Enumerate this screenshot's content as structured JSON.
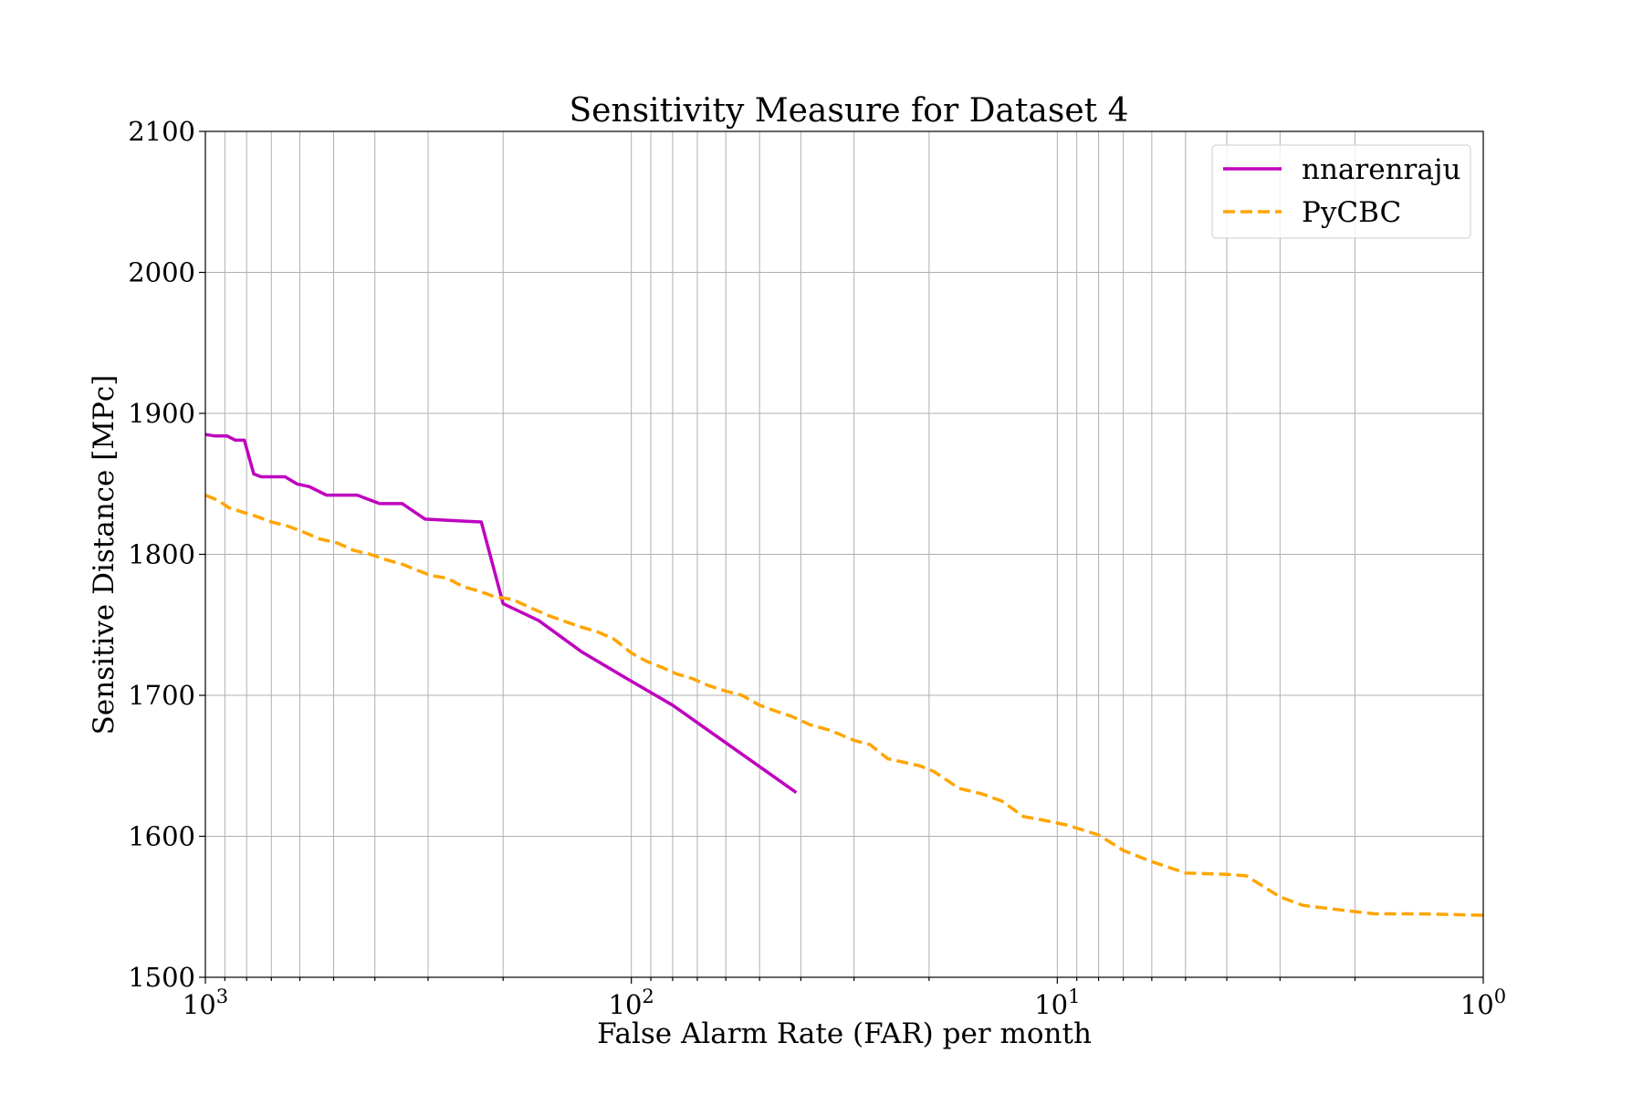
{
  "chart_data": {
    "type": "line",
    "title": "Sensitivity Measure for Dataset 4",
    "xlabel": "False Alarm Rate (FAR) per month",
    "ylabel": "Sensitive Distance [MPc]",
    "x_scale": "log",
    "x_reversed": true,
    "xlim": [
      1000,
      1
    ],
    "ylim": [
      1500,
      2100
    ],
    "grid": true,
    "legend_position": "top-right",
    "x_ticks": [
      {
        "value": 1000,
        "base": "10",
        "exp": "3"
      },
      {
        "value": 100,
        "base": "10",
        "exp": "2"
      },
      {
        "value": 10,
        "base": "10",
        "exp": "1"
      },
      {
        "value": 1,
        "base": "10",
        "exp": "0"
      }
    ],
    "y_ticks": [
      {
        "value": 1500,
        "label": "1500"
      },
      {
        "value": 1600,
        "label": "1600"
      },
      {
        "value": 1700,
        "label": "1700"
      },
      {
        "value": 1800,
        "label": "1800"
      },
      {
        "value": 1900,
        "label": "1900"
      },
      {
        "value": 2000,
        "label": "2000"
      },
      {
        "value": 2100,
        "label": "2100"
      }
    ],
    "series": [
      {
        "name": "nnarenraju",
        "color": "#bf00bf",
        "style": "solid",
        "points": [
          [
            1000,
            1885
          ],
          [
            950,
            1884
          ],
          [
            890,
            1884
          ],
          [
            850,
            1881
          ],
          [
            810,
            1881
          ],
          [
            770,
            1857
          ],
          [
            740,
            1855
          ],
          [
            650,
            1855
          ],
          [
            610,
            1850
          ],
          [
            570,
            1848
          ],
          [
            520,
            1842
          ],
          [
            440,
            1842
          ],
          [
            390,
            1836
          ],
          [
            345,
            1836
          ],
          [
            305,
            1825
          ],
          [
            265,
            1824
          ],
          [
            225,
            1823
          ],
          [
            200,
            1765
          ],
          [
            165,
            1753
          ],
          [
            131,
            1731
          ],
          [
            104,
            1713
          ],
          [
            80,
            1693
          ],
          [
            41,
            1631
          ]
        ]
      },
      {
        "name": "PyCBC",
        "color": "#ffa500",
        "style": "dashed",
        "points": [
          [
            1000,
            1842
          ],
          [
            930,
            1838
          ],
          [
            880,
            1833
          ],
          [
            820,
            1830
          ],
          [
            760,
            1827
          ],
          [
            700,
            1823
          ],
          [
            640,
            1820
          ],
          [
            590,
            1816
          ],
          [
            540,
            1811
          ],
          [
            490,
            1808
          ],
          [
            450,
            1803
          ],
          [
            410,
            1800
          ],
          [
            375,
            1796
          ],
          [
            345,
            1793
          ],
          [
            320,
            1789
          ],
          [
            295,
            1785
          ],
          [
            270,
            1783
          ],
          [
            248,
            1777
          ],
          [
            228,
            1774
          ],
          [
            210,
            1770
          ],
          [
            190,
            1768
          ],
          [
            175,
            1763
          ],
          [
            158,
            1757
          ],
          [
            145,
            1753
          ],
          [
            133,
            1749
          ],
          [
            120,
            1745
          ],
          [
            110,
            1740
          ],
          [
            100,
            1730
          ],
          [
            92,
            1724
          ],
          [
            85,
            1720
          ],
          [
            78,
            1715
          ],
          [
            72,
            1712
          ],
          [
            66,
            1707
          ],
          [
            60,
            1703
          ],
          [
            55,
            1700
          ],
          [
            50,
            1693
          ],
          [
            46,
            1689
          ],
          [
            42,
            1685
          ],
          [
            38,
            1679
          ],
          [
            34,
            1675
          ],
          [
            30,
            1668
          ],
          [
            27.5,
            1665
          ],
          [
            25,
            1655
          ],
          [
            21,
            1650
          ],
          [
            19.5,
            1646
          ],
          [
            17,
            1634
          ],
          [
            15,
            1630
          ],
          [
            13.5,
            1625
          ],
          [
            12,
            1614
          ],
          [
            11,
            1612
          ],
          [
            9.5,
            1608
          ],
          [
            8,
            1601
          ],
          [
            7,
            1590
          ],
          [
            6,
            1582
          ],
          [
            5,
            1574
          ],
          [
            4,
            1573
          ],
          [
            3.6,
            1572
          ],
          [
            3.0,
            1557
          ],
          [
            2.65,
            1551
          ],
          [
            2.2,
            1548
          ],
          [
            1.8,
            1545
          ],
          [
            1.4,
            1545
          ],
          [
            1.0,
            1544
          ]
        ]
      }
    ]
  }
}
